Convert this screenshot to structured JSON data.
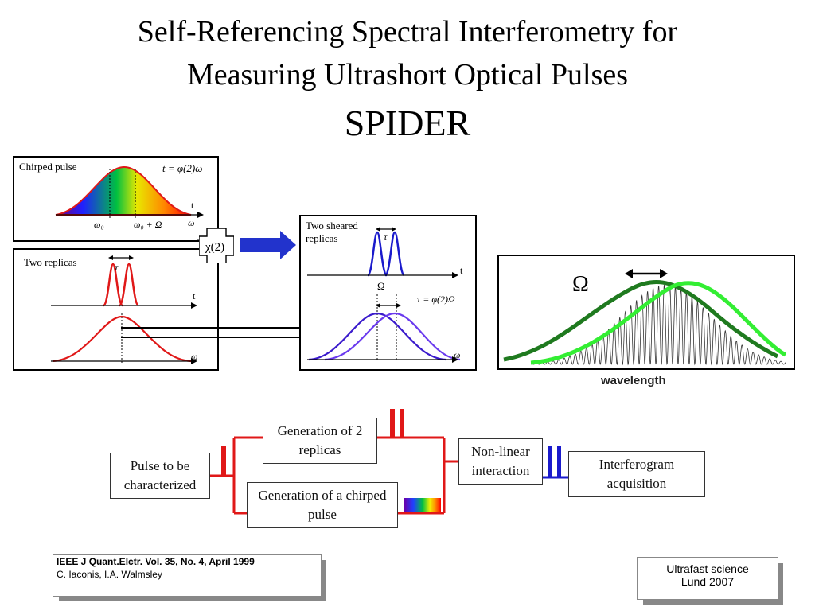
{
  "title": {
    "line1": "Self-Referencing Spectral Interferometry for",
    "line2": "Measuring Ultrashort Optical Pulses",
    "line3": "SPIDER"
  },
  "panels": {
    "chirped": {
      "label": "Chirped pulse",
      "equation": "t = φ(2)ω",
      "axis_t": "t",
      "axis_w": "ω",
      "tick1": "ω₀",
      "tick2": "ω₀ + Ω"
    },
    "replicas": {
      "label": "Two replicas",
      "tau": "τ",
      "axis_t": "t",
      "axis_w": "ω"
    },
    "chi": {
      "label": "χ(2)"
    },
    "sheared": {
      "label_line1": "Two sheared",
      "label_line2": "replicas",
      "tau": "τ",
      "axis_t": "t",
      "omega": "Ω",
      "equation": "τ = φ(2)Ω",
      "axis_w": "ω"
    },
    "interferogram": {
      "omega": "Ω",
      "xlabel": "wavelength"
    }
  },
  "flow": {
    "pulse": "Pulse to be characterized",
    "gen2": "Generation of 2 replicas",
    "genchirp": "Generation of a chirped pulse",
    "nonlinear": "Non-linear interaction",
    "acquisition": "Interferogram acquisition"
  },
  "reference": {
    "line1": "IEEE J Quant.Elctr.  Vol. 35, No. 4, April 1999",
    "line2": "C. Iaconis, I.A. Walmsley"
  },
  "course": {
    "line1": "Ultrafast science",
    "line2": "Lund 2007"
  },
  "colors": {
    "red": "#e01818",
    "blue": "#1a1acc",
    "darkgreen": "#1f7a1f",
    "lightgreen": "#33ee33"
  }
}
